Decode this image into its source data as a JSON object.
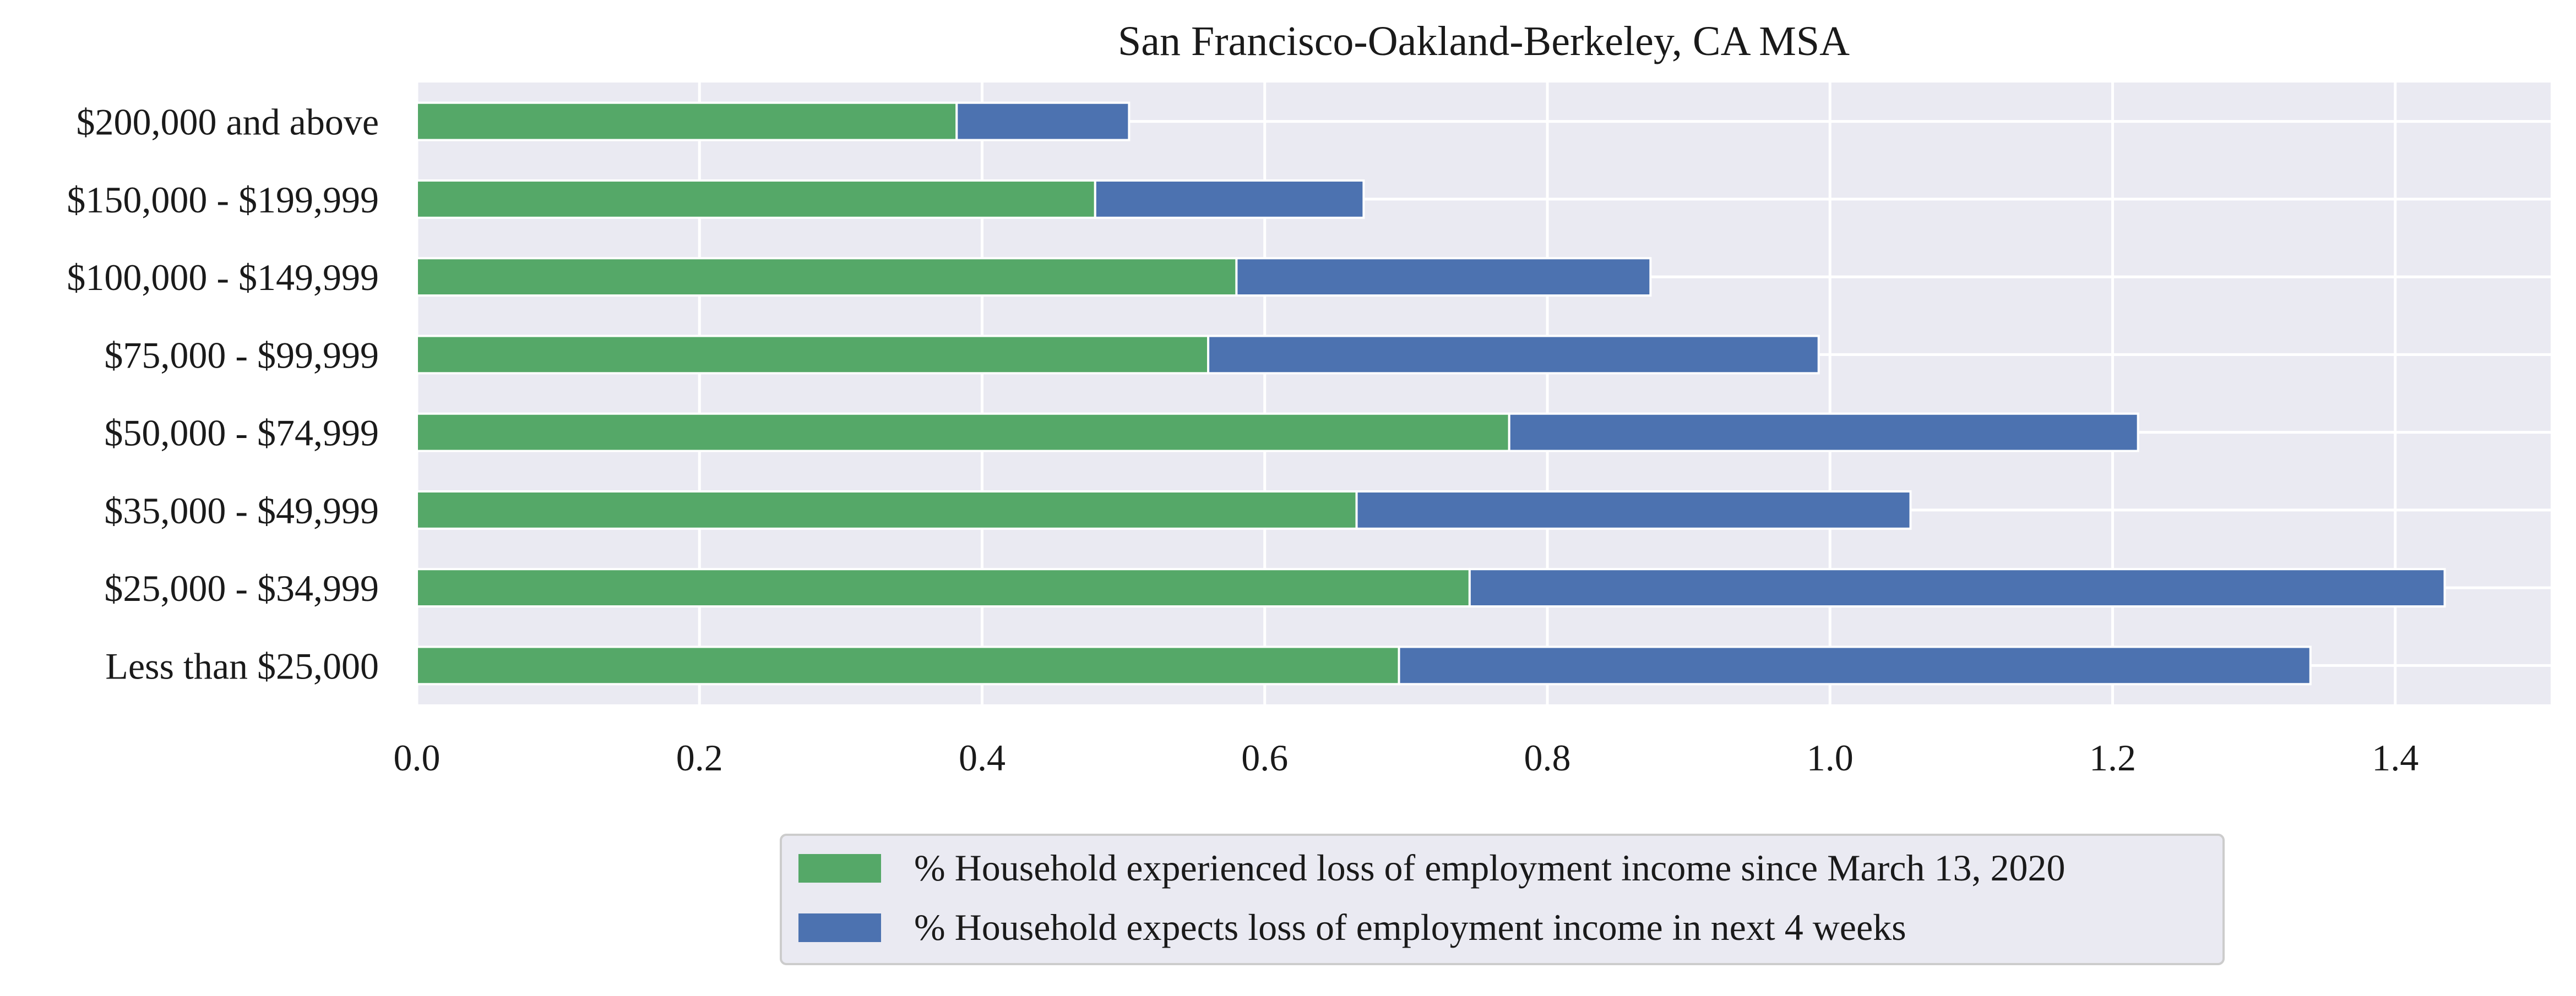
{
  "chart_data": {
    "type": "bar",
    "orientation": "horizontal",
    "stacked": true,
    "title": "San Francisco-Oakland-Berkeley, CA MSA",
    "xlabel": "",
    "ylabel": "",
    "categories": [
      "Less than $25,000",
      "$25,000 - $34,999",
      "$35,000 - $49,999",
      "$50,000 - $74,999",
      "$75,000 - $99,999",
      "$100,000 - $149,999",
      "$150,000 - $199,999",
      "$200,000 and above"
    ],
    "series": [
      {
        "name": "% Household experienced loss of employment income since March 13, 2020",
        "color": "#55a868",
        "values": [
          0.695,
          0.745,
          0.665,
          0.773,
          0.56,
          0.58,
          0.48,
          0.382
        ]
      },
      {
        "name": "% Household expects loss of employment income in next 4 weeks",
        "color": "#4c72b0",
        "values": [
          0.645,
          0.69,
          0.392,
          0.445,
          0.432,
          0.293,
          0.19,
          0.122
        ]
      }
    ],
    "xlim": [
      0.0,
      1.51
    ],
    "xticks": [
      "0.0",
      "0.2",
      "0.4",
      "0.6",
      "0.8",
      "1.0",
      "1.2",
      "1.4"
    ],
    "grid": true,
    "legend_position": "bottom-center",
    "plot_background": "#eaeaf2"
  }
}
